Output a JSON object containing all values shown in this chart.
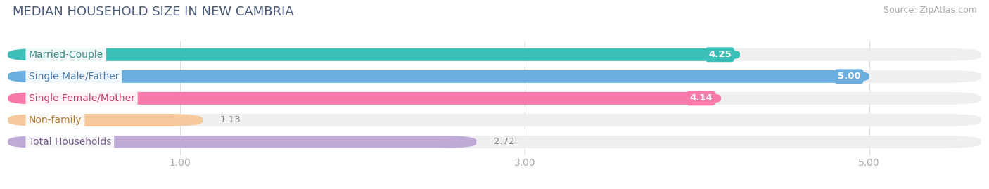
{
  "title": "MEDIAN HOUSEHOLD SIZE IN NEW CAMBRIA",
  "source": "Source: ZipAtlas.com",
  "categories": [
    "Married-Couple",
    "Single Male/Father",
    "Single Female/Mother",
    "Non-family",
    "Total Households"
  ],
  "values": [
    4.25,
    5.0,
    4.14,
    1.13,
    2.72
  ],
  "bar_colors": [
    "#3cbfb8",
    "#6aaee0",
    "#f87aab",
    "#f5c99b",
    "#c0aad8"
  ],
  "bar_bg_color": "#efefef",
  "label_text_colors": [
    "#3a8a85",
    "#4a7aad",
    "#c04070",
    "#b07830",
    "#7a6090"
  ],
  "xlim": [
    0,
    5.65
  ],
  "xticks": [
    1.0,
    3.0,
    5.0
  ],
  "title_fontsize": 13,
  "source_fontsize": 9,
  "label_fontsize": 10,
  "value_fontsize": 9.5,
  "tick_fontsize": 10
}
